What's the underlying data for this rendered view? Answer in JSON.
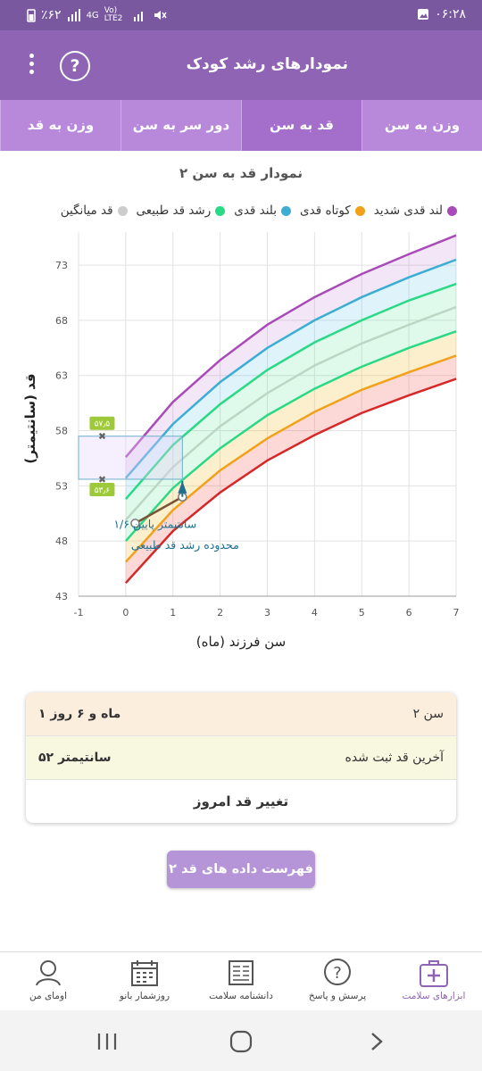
{
  "status": {
    "time": "۰۶:۲۸",
    "battery": "٪۶۲",
    "network": "4G",
    "volte": "Vo) LTE2"
  },
  "appbar": {
    "title": "نمودارهای رشد کودک",
    "help_icon": "question-icon",
    "menu_icon": "kebab-menu-icon"
  },
  "tabs": [
    {
      "label": "وزن به سن",
      "active": false
    },
    {
      "label": "قد به سن",
      "active": true
    },
    {
      "label": "دور سر به سن",
      "active": false
    },
    {
      "label": "وزن به قد",
      "active": false
    }
  ],
  "chart_title": "نمودار قد به سن ۲",
  "legend": [
    {
      "label": "لند قدی شدید",
      "color": "#a84bb8"
    },
    {
      "label": "کوتاه قدی",
      "color": "#f0a21a"
    },
    {
      "label": "بلند قدی",
      "color": "#3cadd3"
    },
    {
      "label": "رشد قد طبیعی",
      "color": "#29d985"
    },
    {
      "label": "قد میانگین",
      "color": "#cccccc"
    }
  ],
  "chart_data": {
    "type": "line",
    "xlabel": "سن فرزند (ماه)",
    "ylabel": "قد (سانتیمتر)",
    "xlim": [
      -1,
      7
    ],
    "ylim": [
      43,
      76
    ],
    "x_ticks": [
      "-1",
      "0",
      "1",
      "2",
      "3",
      "4",
      "5",
      "6",
      "7"
    ],
    "y_ticks": [
      "43",
      "48",
      "53",
      "58",
      "63",
      "68",
      "73"
    ],
    "x": [
      0,
      1,
      2,
      3,
      4,
      5,
      6,
      7
    ],
    "series": [
      {
        "color": "#d62828",
        "values": [
          44.2,
          48.9,
          52.4,
          55.3,
          57.6,
          59.6,
          61.2,
          62.7
        ]
      },
      {
        "color": "#f0a21a",
        "values": [
          46.1,
          50.8,
          54.4,
          57.3,
          59.7,
          61.7,
          63.3,
          64.8
        ]
      },
      {
        "color": "#29d985",
        "values": [
          48.0,
          52.8,
          56.4,
          59.4,
          61.8,
          63.8,
          65.5,
          67.0
        ]
      },
      {
        "color": "#bcd6c4",
        "values": [
          49.9,
          54.7,
          58.4,
          61.4,
          63.9,
          65.9,
          67.6,
          69.2
        ]
      },
      {
        "color": "#29d985",
        "values": [
          51.8,
          56.7,
          60.4,
          63.5,
          66.0,
          68.0,
          69.8,
          71.3
        ]
      },
      {
        "color": "#3cadd3",
        "values": [
          53.7,
          58.6,
          62.4,
          65.5,
          68.0,
          70.1,
          71.9,
          73.5
        ]
      },
      {
        "color": "#a84bb8",
        "values": [
          55.6,
          60.6,
          64.4,
          67.6,
          70.1,
          72.2,
          74.0,
          75.7
        ]
      }
    ],
    "child_points": [
      {
        "x": 0.2,
        "y": 49.6
      },
      {
        "x": 1.2,
        "y": 52.0
      }
    ],
    "range_box": {
      "x": [
        -1,
        1.2
      ],
      "y": [
        53.6,
        57.5
      ]
    },
    "range_labels": [
      "۵۷٫۵",
      "۵۳٫۶"
    ],
    "annotations": [
      "۱/۶ سانتیمتر پایین",
      "محدوده رشد قد طبیعی"
    ]
  },
  "info_card": {
    "age_label": "سن ۲",
    "age_value": "۱ ماه و ۶ روز",
    "last_height_label": "آخرین قد ثبت شده",
    "last_height_value": "۵۲ سانتیمتر",
    "change_button": "تغییر قد امروز"
  },
  "list_button": "فهرست داده های قد ۲",
  "bottom_nav": [
    {
      "label": "ابزارهای سلامت",
      "icon": "medical-kit-icon",
      "active": true
    },
    {
      "label": "پرسش و پاسخ",
      "icon": "question-bubble-icon",
      "active": false
    },
    {
      "label": "دانشنامه سلامت",
      "icon": "encyclopedia-icon",
      "active": false
    },
    {
      "label": "روزشمار بانو",
      "icon": "calendar-icon",
      "active": false
    },
    {
      "label": "اومای من",
      "icon": "profile-icon",
      "active": false
    }
  ]
}
